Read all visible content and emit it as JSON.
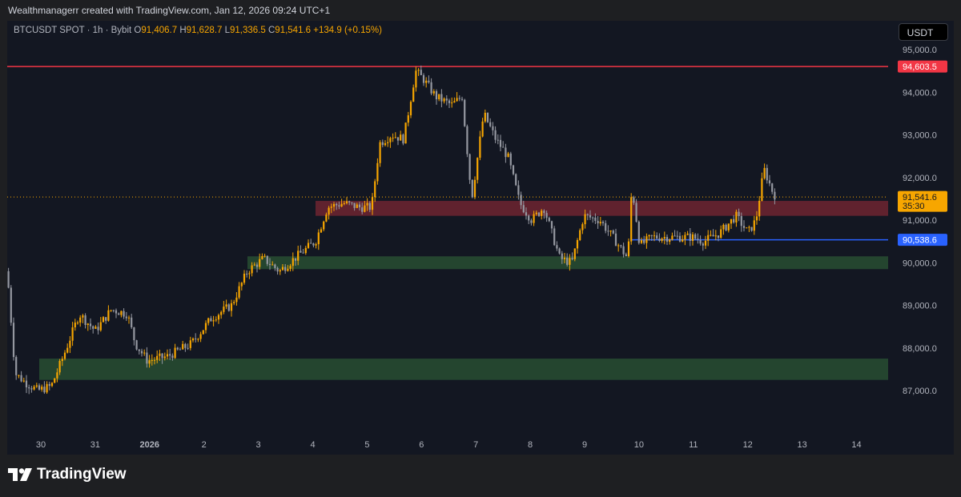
{
  "header": {
    "attribution": "Wealthmanagerr created with TradingView.com, Jan 12, 2026 09:24 UTC+1"
  },
  "legend": {
    "symbol": "BTCUSDT SPOT · 1h · Bybit",
    "o_label": "O",
    "o": "91,406.7",
    "h_label": "H",
    "h": "91,628.7",
    "l_label": "L",
    "l": "91,336.5",
    "c_label": "C",
    "c": "91,541.6",
    "change": "+134.9 (+0.15%)"
  },
  "currency_button": "USDT",
  "price_axis": {
    "ticks": [
      "95,000.0",
      "94,000.0",
      "93,000.0",
      "92,000.0",
      "91,000.0",
      "90,000.0",
      "89,000.0",
      "88,000.0",
      "87,000.0"
    ]
  },
  "time_axis": {
    "ticks": [
      "30",
      "31",
      "2026",
      "2",
      "3",
      "4",
      "5",
      "6",
      "7",
      "8",
      "9",
      "10",
      "11",
      "12",
      "13",
      "14"
    ]
  },
  "levels": {
    "resistance_line": {
      "price": 94603.5,
      "label": "94,603.5",
      "color": "#f23645"
    },
    "support_line": {
      "price": 90538.6,
      "label": "90,538.6",
      "color": "#2962ff"
    },
    "last_price": {
      "price": 91541.6,
      "label": "91,541.6",
      "countdown": "35:30",
      "color": "#f7a600"
    }
  },
  "zones": [
    {
      "name": "red-zone",
      "from": 91100,
      "to": 91450,
      "color": "rgba(242,54,69,0.35)"
    },
    {
      "name": "green-zone-mid",
      "from": 89850,
      "to": 90150,
      "color": "rgba(76,175,80,0.3)"
    },
    {
      "name": "green-zone-low",
      "from": 87250,
      "to": 87750,
      "color": "rgba(76,175,80,0.3)"
    }
  ],
  "chart_data": {
    "type": "candlestick",
    "ylim": [
      86700,
      95500
    ],
    "up_color": "#f7a600",
    "down_color": "#9598a1",
    "path": [
      [
        0,
        89800
      ],
      [
        10,
        87400
      ],
      [
        22,
        87200
      ],
      [
        38,
        87000
      ],
      [
        55,
        87100
      ],
      [
        70,
        87800
      ],
      [
        90,
        88800
      ],
      [
        110,
        88400
      ],
      [
        130,
        88900
      ],
      [
        150,
        88800
      ],
      [
        160,
        88100
      ],
      [
        175,
        87700
      ],
      [
        200,
        87800
      ],
      [
        230,
        88100
      ],
      [
        255,
        88700
      ],
      [
        280,
        89000
      ],
      [
        300,
        89800
      ],
      [
        320,
        90100
      ],
      [
        340,
        89800
      ],
      [
        365,
        90200
      ],
      [
        385,
        90500
      ],
      [
        400,
        91300
      ],
      [
        420,
        91400
      ],
      [
        440,
        91300
      ],
      [
        455,
        91300
      ],
      [
        465,
        92800
      ],
      [
        480,
        93000
      ],
      [
        495,
        92900
      ],
      [
        510,
        94500
      ],
      [
        520,
        94300
      ],
      [
        535,
        93900
      ],
      [
        555,
        93700
      ],
      [
        568,
        93900
      ],
      [
        580,
        91500
      ],
      [
        595,
        93500
      ],
      [
        610,
        92900
      ],
      [
        625,
        92500
      ],
      [
        640,
        91400
      ],
      [
        655,
        91000
      ],
      [
        670,
        91300
      ],
      [
        690,
        90100
      ],
      [
        705,
        90000
      ],
      [
        720,
        91100
      ],
      [
        740,
        91000
      ],
      [
        760,
        90500
      ],
      [
        775,
        90100
      ],
      [
        780,
        91800
      ],
      [
        790,
        90400
      ],
      [
        805,
        90600
      ],
      [
        830,
        90600
      ],
      [
        855,
        90600
      ],
      [
        870,
        90500
      ],
      [
        890,
        90700
      ],
      [
        910,
        91100
      ],
      [
        925,
        90700
      ],
      [
        935,
        91000
      ],
      [
        945,
        92200
      ],
      [
        955,
        91700
      ],
      [
        960,
        91540
      ]
    ],
    "candles": 300,
    "title": "BTCUSDT SPOT · 1h · Bybit"
  }
}
